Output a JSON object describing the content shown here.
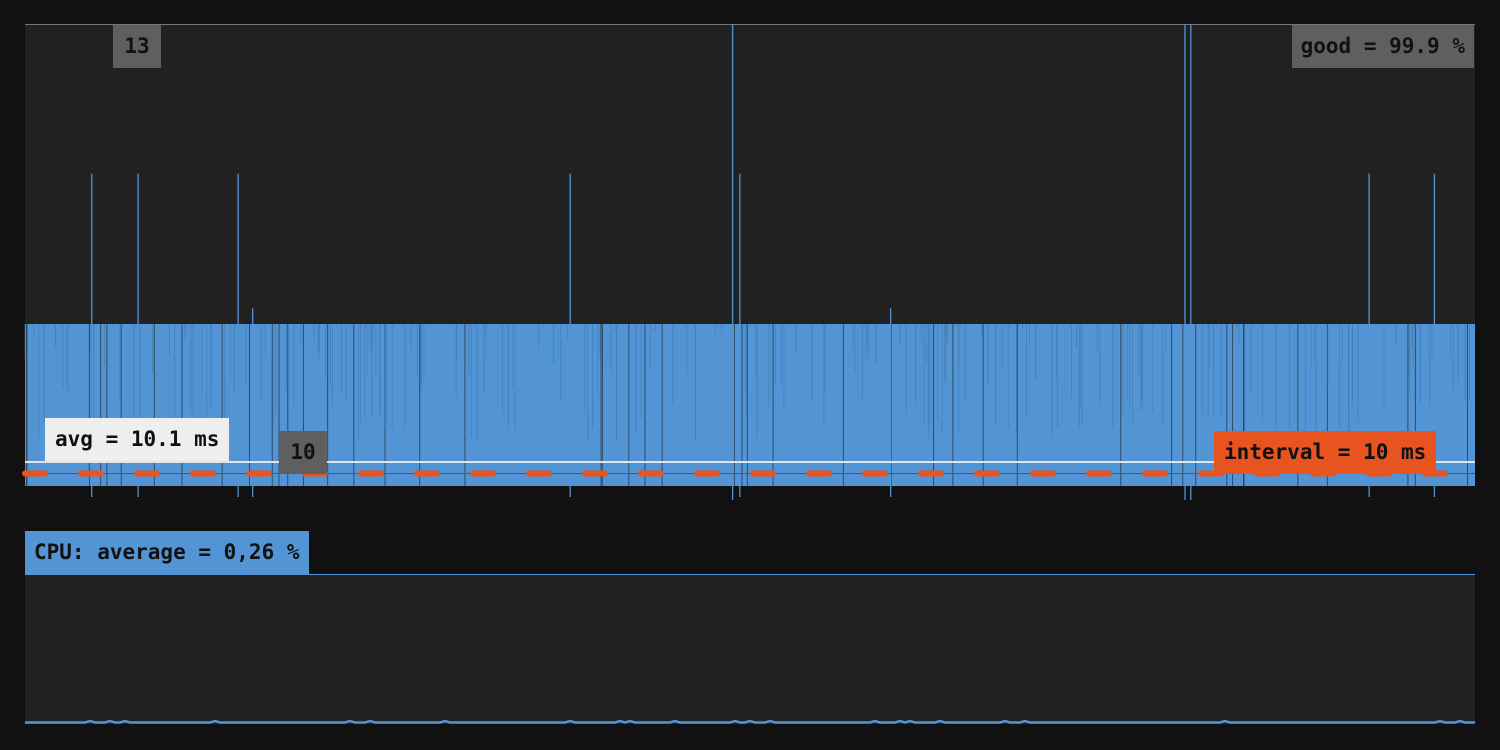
{
  "chart_data": [
    {
      "type": "line",
      "ylim": [
        9.9,
        13
      ],
      "y_tick_labels": [
        "13",
        "10"
      ],
      "good_label": "good = 99.9 %",
      "avg_label": "avg = 10.1 ms",
      "interval_label": "interval = 10 ms",
      "average": 10.1,
      "interval": 10,
      "band_range": [
        9.9,
        11
      ],
      "spikes": [
        {
          "sample": 46,
          "value": 12
        },
        {
          "sample": 78,
          "value": 12
        },
        {
          "sample": 147,
          "value": 12
        },
        {
          "sample": 157,
          "value": 11.1
        },
        {
          "sample": 376,
          "value": 12
        },
        {
          "sample": 488,
          "value": 13
        },
        {
          "sample": 493,
          "value": 12
        },
        {
          "sample": 597,
          "value": 11.1
        },
        {
          "sample": 800,
          "value": 13
        },
        {
          "sample": 804,
          "value": 13
        },
        {
          "sample": 927,
          "value": 12
        },
        {
          "sample": 972,
          "value": 12
        }
      ],
      "colors": {
        "series": "#5294d4",
        "interval": "#e85420",
        "avg": "#dddddd",
        "panel": "#212121"
      }
    },
    {
      "type": "line",
      "title": "CPU: average = 0,26 %",
      "average_percent": 0.26,
      "colors": {
        "series": "#5294d4"
      }
    }
  ]
}
